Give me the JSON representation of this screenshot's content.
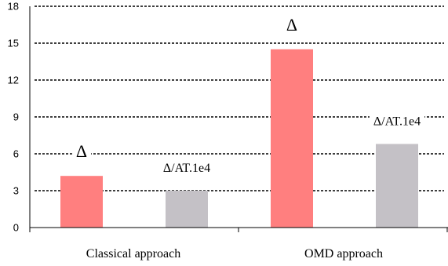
{
  "chart_data": {
    "type": "bar",
    "categories": [
      "Classical approach",
      "OMD approach"
    ],
    "series": [
      {
        "color": "#ff7f7f",
        "label": "Δ",
        "values": [
          4.2,
          14.5
        ]
      },
      {
        "color": "#c4c1c6",
        "label": "Δ/AT.1e4",
        "values": [
          3.0,
          6.8
        ]
      }
    ],
    "ylim": [
      0,
      18
    ],
    "yticks": [
      0,
      3,
      6,
      9,
      12,
      15,
      18
    ],
    "grid": true,
    "title": "",
    "xlabel": "",
    "ylabel": ""
  }
}
